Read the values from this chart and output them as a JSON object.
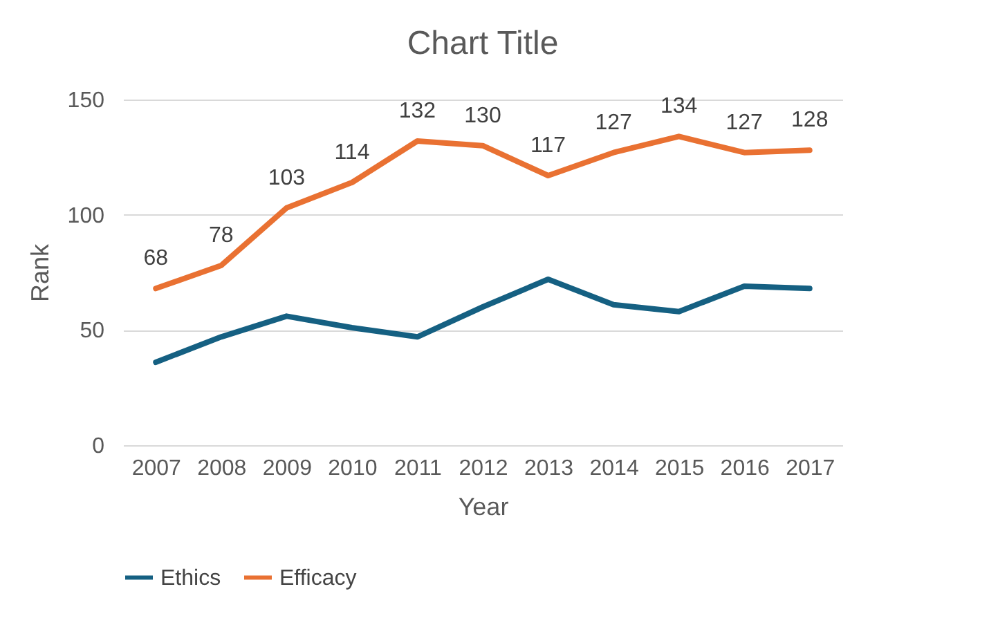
{
  "chart_data": {
    "type": "line",
    "title": "Chart Title",
    "xlabel": "Year",
    "ylabel": "Rank",
    "categories": [
      "2007",
      "2008",
      "2009",
      "2010",
      "2011",
      "2012",
      "2013",
      "2014",
      "2015",
      "2016",
      "2017"
    ],
    "series": [
      {
        "name": "Ethics",
        "color": "#156082",
        "values": [
          36,
          47,
          56,
          51,
          47,
          60,
          72,
          61,
          58,
          69,
          68
        ]
      },
      {
        "name": "Efficacy",
        "color": "#e97132",
        "values": [
          68,
          78,
          103,
          114,
          132,
          130,
          117,
          127,
          134,
          127,
          128
        ],
        "value_labels": [
          "68",
          "78",
          "103",
          "114",
          "132",
          "130",
          "117",
          "127",
          "134",
          "127",
          "128"
        ]
      }
    ],
    "ylim": [
      0,
      150
    ],
    "yticks": [
      0,
      50,
      100,
      150
    ],
    "grid": "y",
    "legend": "bottom",
    "marker": "none",
    "line_style": "solid"
  }
}
